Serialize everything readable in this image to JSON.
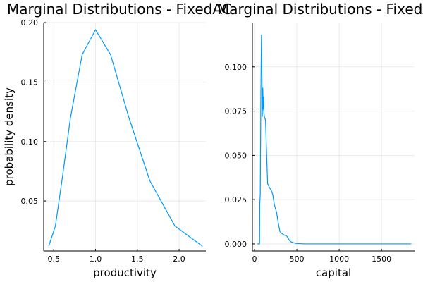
{
  "chart_data": [
    {
      "type": "line",
      "title": "Marginal Distributions - FixedAC",
      "xlabel": "productivity",
      "ylabel": "probability density",
      "xlim": [
        0.38,
        2.32
      ],
      "ylim": [
        0.008,
        0.2
      ],
      "xticks": [
        0.5,
        1.0,
        1.5,
        2.0
      ],
      "xtick_labels": [
        "0.5",
        "1.0",
        "1.5",
        "2.0"
      ],
      "yticks": [
        0.05,
        0.1,
        0.15,
        0.2
      ],
      "ytick_labels": [
        "0.05",
        "0.10",
        "0.15",
        "0.20"
      ],
      "grid": true,
      "legend": "none",
      "series": [
        {
          "color": "#009af9",
          "x": [
            0.44,
            0.52,
            0.6,
            0.7,
            0.84,
            1.0,
            1.18,
            1.4,
            1.65,
            1.95,
            2.28
          ],
          "y": [
            0.012,
            0.029,
            0.068,
            0.12,
            0.173,
            0.194,
            0.173,
            0.12,
            0.067,
            0.029,
            0.012
          ]
        }
      ]
    },
    {
      "type": "line",
      "title": "Marginal Distributions - FixedAC",
      "xlabel": "capital",
      "ylabel": "",
      "xlim": [
        -25,
        1890
      ],
      "ylim": [
        -0.004,
        0.125
      ],
      "xticks": [
        0,
        500,
        1000,
        1500
      ],
      "xtick_labels": [
        "0",
        "500",
        "1000",
        "1500"
      ],
      "yticks": [
        0.0,
        0.025,
        0.05,
        0.075,
        0.1
      ],
      "ytick_labels": [
        "0.000",
        "0.025",
        "0.050",
        "0.075",
        "0.100"
      ],
      "grid": true,
      "legend": "none",
      "series": [
        {
          "color": "#009af9",
          "x": [
            35,
            60,
            62,
            68,
            75,
            82,
            88,
            92,
            98,
            103,
            107,
            111,
            116,
            122,
            130,
            140,
            155,
            175,
            200,
            215,
            235,
            260,
            280,
            300,
            320,
            350,
            380,
            400,
            420,
            440,
            460,
            480,
            500,
            550,
            600,
            800,
            1000,
            1200,
            1400,
            1600,
            1850
          ],
          "y": [
            0.0,
            0.0,
            0.022,
            0.028,
            0.085,
            0.118,
            0.095,
            0.072,
            0.088,
            0.076,
            0.083,
            0.074,
            0.072,
            0.071,
            0.07,
            0.055,
            0.034,
            0.032,
            0.03,
            0.028,
            0.022,
            0.018,
            0.012,
            0.007,
            0.006,
            0.005,
            0.0045,
            0.003,
            0.0015,
            0.001,
            0.0007,
            0.0004,
            0.0002,
            0.0001,
            0.0,
            0.0,
            0.0,
            0.0,
            0.0,
            0.0,
            0.0
          ]
        }
      ]
    }
  ]
}
